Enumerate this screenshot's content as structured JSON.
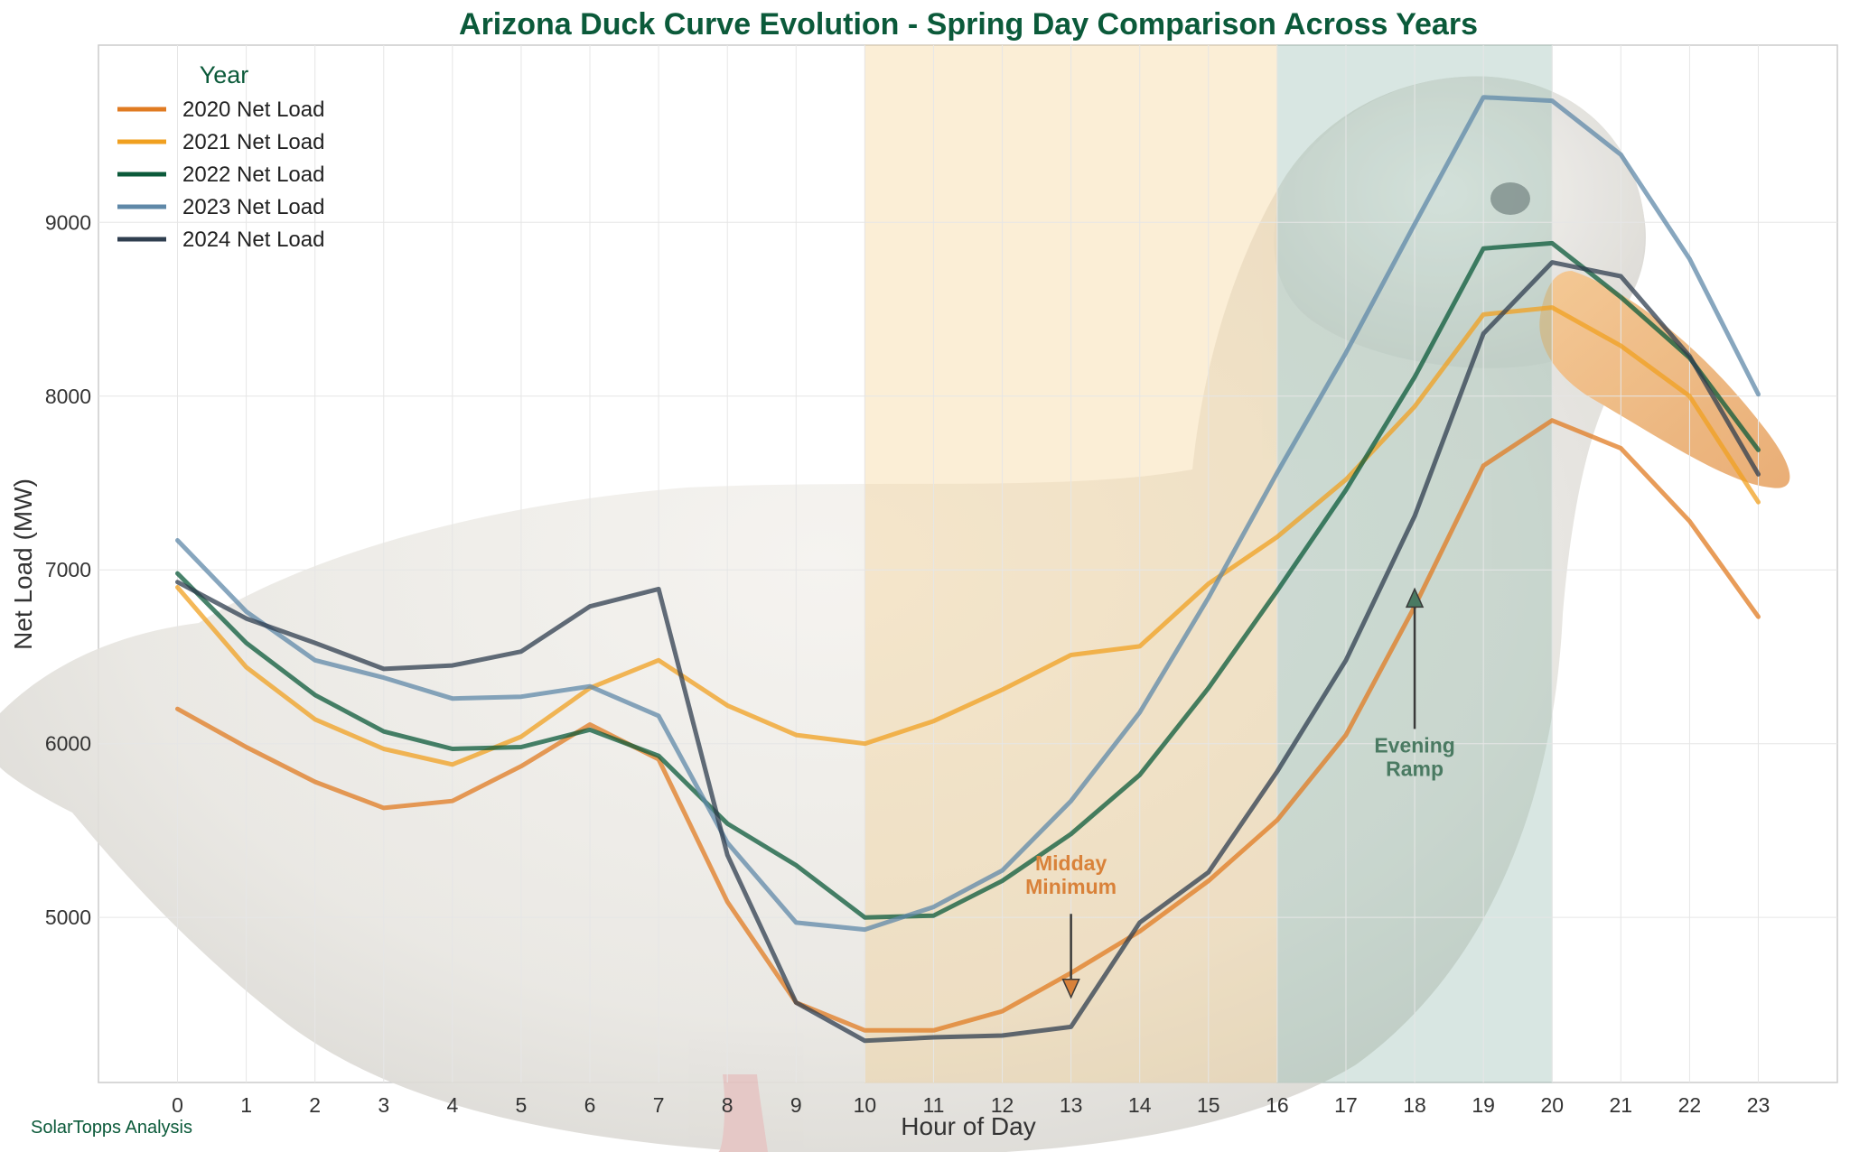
{
  "chart_data": {
    "type": "line",
    "title": "Arizona Duck Curve Evolution - Spring Day Comparison Across Years",
    "xlabel": "Hour of Day",
    "ylabel": "Net Load (MW)",
    "x": [
      0,
      1,
      2,
      3,
      4,
      5,
      6,
      7,
      8,
      9,
      10,
      11,
      12,
      13,
      14,
      15,
      16,
      17,
      18,
      19,
      20,
      21,
      22,
      23
    ],
    "xlim": [
      -1.15,
      24.15
    ],
    "ylim": [
      4050,
      10020
    ],
    "yticks": [
      5000,
      6000,
      7000,
      8000,
      9000
    ],
    "grid": true,
    "legend": {
      "title": "Year",
      "placement": "top-left"
    },
    "series": [
      {
        "name": "2020 Net Load",
        "color": "#e07b22",
        "values": [
          6200,
          5980,
          5780,
          5630,
          5670,
          5870,
          6110,
          5910,
          5090,
          4510,
          4350,
          4350,
          4460,
          4680,
          4920,
          5210,
          5560,
          6050,
          6790,
          7600,
          7860,
          7700,
          7280,
          6730
        ]
      },
      {
        "name": "2021 Net Load",
        "color": "#f0a020",
        "values": [
          6900,
          6440,
          6140,
          5970,
          5880,
          6040,
          6320,
          6480,
          6220,
          6050,
          6000,
          6130,
          6310,
          6510,
          6560,
          6920,
          7190,
          7520,
          7940,
          8470,
          8510,
          8290,
          8000,
          7390
        ]
      },
      {
        "name": "2022 Net Load",
        "color": "#0b5a3a",
        "values": [
          6980,
          6580,
          6280,
          6070,
          5970,
          5980,
          6080,
          5930,
          5540,
          5300,
          5000,
          5010,
          5210,
          5480,
          5820,
          6320,
          6880,
          7460,
          8110,
          8850,
          8880,
          8570,
          8220,
          7690
        ]
      },
      {
        "name": "2023 Net Load",
        "color": "#5f88a8",
        "values": [
          7170,
          6760,
          6480,
          6380,
          6260,
          6270,
          6330,
          6160,
          5430,
          4970,
          4930,
          5060,
          5270,
          5670,
          6180,
          6840,
          7560,
          8250,
          8990,
          9720,
          9700,
          9390,
          8790,
          8010
        ]
      },
      {
        "name": "2024 Net Load",
        "color": "#2f3e4f",
        "values": [
          6930,
          6720,
          6580,
          6430,
          6450,
          6530,
          6790,
          6890,
          5360,
          4510,
          4290,
          4310,
          4320,
          4370,
          4970,
          5260,
          5840,
          6480,
          7310,
          8360,
          8770,
          8690,
          8230,
          7550
        ]
      }
    ],
    "shaded_regions": [
      {
        "x_start": 10,
        "x_end": 16,
        "color": "#f5c87a"
      },
      {
        "x_start": 16,
        "x_end": 20,
        "color": "#7fb0a0"
      }
    ],
    "annotations": [
      {
        "text": "Midday\nMinimum",
        "text_x": 13,
        "text_y": 5270,
        "arrow_to_x": 13,
        "arrow_to_y": 4540,
        "color": "#d9823a"
      },
      {
        "text": "Evening\nRamp",
        "text_x": 18,
        "text_y": 5950,
        "arrow_to_x": 18,
        "arrow_to_y": 6890,
        "color": "#4a7a62"
      }
    ],
    "credit": "SolarTopps Analysis"
  }
}
